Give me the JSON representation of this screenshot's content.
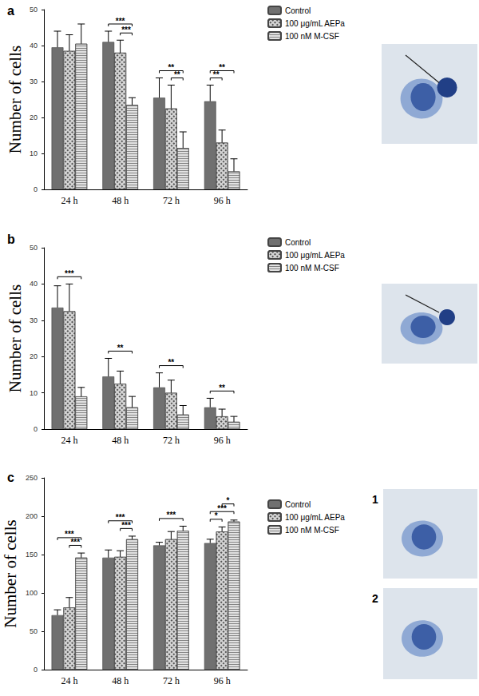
{
  "chart_data": [
    {
      "type": "bar",
      "title": "a",
      "y_label": "Number of cells",
      "categories": [
        "24 h",
        "48 h",
        "72 h",
        "96 h"
      ],
      "series": [
        {
          "name": "Control",
          "color": "#707070",
          "values": [
            39.5,
            41,
            25.5,
            24.5
          ],
          "errors": [
            4.5,
            3,
            5.5,
            4.5
          ]
        },
        {
          "name": "100 μg/mL AEPa",
          "color": "#d4d4d4",
          "values": [
            38.5,
            38,
            22.5,
            13
          ],
          "errors": [
            4.5,
            3.5,
            6.5,
            3.5
          ]
        },
        {
          "name": "100 nM M-CSF",
          "color": "#e2e2e2",
          "values": [
            40.5,
            23.5,
            11.5,
            5
          ],
          "errors": [
            5.5,
            2,
            4.5,
            3.5
          ]
        }
      ],
      "ylim": [
        0,
        50
      ],
      "yticks": [
        0,
        10,
        20,
        30,
        40,
        50
      ],
      "grid": false,
      "legend": "right",
      "significance": [
        {
          "category": "48 h",
          "from": "100 μg/mL AEPa",
          "to": "100 nM M-CSF",
          "label": "***"
        },
        {
          "category": "48 h",
          "from": "Control",
          "to": "100 nM M-CSF",
          "label": "***"
        },
        {
          "category": "72 h",
          "from": "100 μg/mL AEPa",
          "to": "100 nM M-CSF",
          "label": "**"
        },
        {
          "category": "72 h",
          "from": "Control",
          "to": "100 nM M-CSF",
          "label": "**"
        },
        {
          "category": "96 h",
          "from": "Control",
          "to": "100 μg/mL AEPa",
          "label": "**"
        },
        {
          "category": "96 h",
          "from": "Control",
          "to": "100 nM M-CSF",
          "label": "**"
        }
      ]
    },
    {
      "type": "bar",
      "title": "b",
      "y_label": "Number of cells",
      "categories": [
        "24 h",
        "48 h",
        "72 h",
        "96 h"
      ],
      "series": [
        {
          "name": "Control",
          "color": "#707070",
          "values": [
            33.5,
            14.5,
            11.5,
            6
          ],
          "errors": [
            6,
            5,
            4,
            2.5
          ]
        },
        {
          "name": "100 μg/mL AEPa",
          "color": "#d4d4d4",
          "values": [
            32.5,
            12.5,
            10,
            3.5
          ],
          "errors": [
            7.5,
            3.5,
            3.5,
            2
          ]
        },
        {
          "name": "100 nM M-CSF",
          "color": "#e2e2e2",
          "values": [
            9,
            6,
            4,
            2
          ],
          "errors": [
            2.5,
            3,
            2.5,
            1.5
          ]
        }
      ],
      "ylim": [
        0,
        50
      ],
      "yticks": [
        0,
        10,
        20,
        30,
        40,
        50
      ],
      "grid": false,
      "legend": "right",
      "significance": [
        {
          "category": "24 h",
          "from": "Control",
          "to": "100 nM M-CSF",
          "label": "***"
        },
        {
          "category": "48 h",
          "from": "Control",
          "to": "100 nM M-CSF",
          "label": "**"
        },
        {
          "category": "72 h",
          "from": "Control",
          "to": "100 nM M-CSF",
          "label": "**"
        },
        {
          "category": "96 h",
          "from": "Control",
          "to": "100 nM M-CSF",
          "label": "**"
        }
      ]
    },
    {
      "type": "bar",
      "title": "c",
      "y_label": "Number of cells",
      "annotations": [
        "1",
        "2"
      ],
      "categories": [
        "24 h",
        "48 h",
        "72 h",
        "96 h"
      ],
      "series": [
        {
          "name": "Control",
          "color": "#707070",
          "values": [
            71,
            146,
            162,
            165
          ],
          "errors": [
            7,
            10,
            4,
            5
          ]
        },
        {
          "name": "100 μg/mL AEPa",
          "color": "#d4d4d4",
          "values": [
            81,
            147,
            170,
            180
          ],
          "errors": [
            13,
            8,
            10,
            6
          ]
        },
        {
          "name": "100 nM M-CSF",
          "color": "#e2e2e2",
          "values": [
            146,
            170,
            181,
            193
          ],
          "errors": [
            6,
            4,
            6,
            2
          ]
        }
      ],
      "ylim": [
        0,
        250
      ],
      "yticks": [
        0,
        50,
        100,
        150,
        200,
        250
      ],
      "grid": false,
      "legend": "right",
      "significance": [
        {
          "category": "24 h",
          "from": "100 μg/mL AEPa",
          "to": "100 nM M-CSF",
          "label": "***"
        },
        {
          "category": "24 h",
          "from": "Control",
          "to": "100 nM M-CSF",
          "label": "***"
        },
        {
          "category": "48 h",
          "from": "100 μg/mL AEPa",
          "to": "100 nM M-CSF",
          "label": "***"
        },
        {
          "category": "48 h",
          "from": "Control",
          "to": "100 nM M-CSF",
          "label": "***"
        },
        {
          "category": "72 h",
          "from": "Control",
          "to": "100 nM M-CSF",
          "label": "***"
        },
        {
          "category": "96 h",
          "from": "Control",
          "to": "100 μg/mL AEPa",
          "label": "*"
        },
        {
          "category": "96 h",
          "from": "Control",
          "to": "100 nM M-CSF",
          "label": "***"
        },
        {
          "category": "96 h",
          "from": "100 μg/mL AEPa",
          "to": "100 nM M-CSF",
          "label": "*"
        }
      ]
    }
  ]
}
